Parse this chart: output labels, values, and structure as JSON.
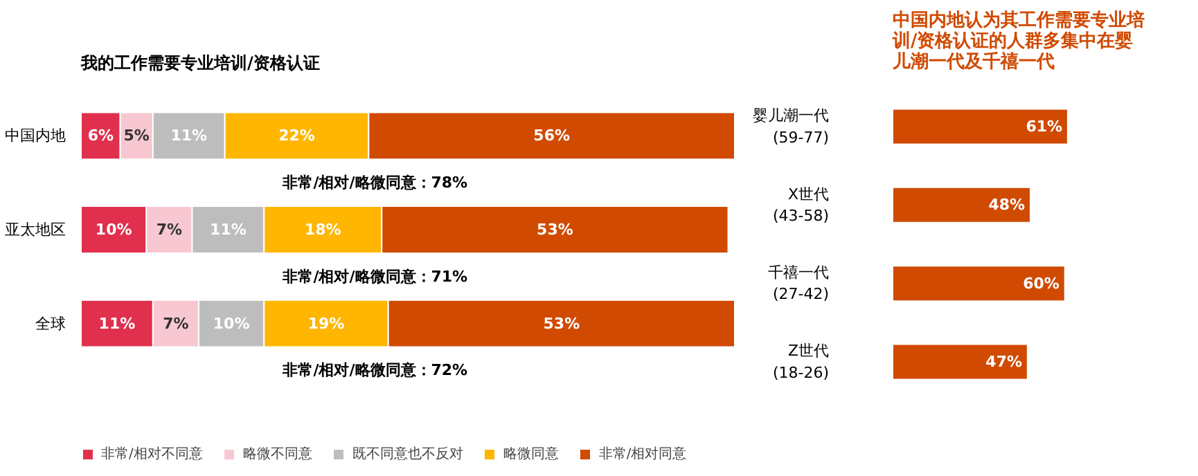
{
  "chart_data": [
    {
      "type": "bar",
      "orientation": "horizontal",
      "stacked": true,
      "title": "我的工作需要专业培训/资格认证",
      "categories": [
        "中国内地",
        "亚太地区",
        "全球"
      ],
      "series": [
        {
          "name": "非常/相对不同意",
          "color": "#e0304e",
          "values": [
            6,
            10,
            11
          ],
          "value_labels": [
            "6%",
            "10%",
            "11%"
          ]
        },
        {
          "name": "略微不同意",
          "color": "#f7c8d2",
          "values": [
            5,
            7,
            7
          ],
          "value_labels": [
            "5%",
            "7%",
            "7%"
          ]
        },
        {
          "name": "既不同意也不反对",
          "color": "#bdbdbd",
          "values": [
            11,
            11,
            10
          ],
          "value_labels": [
            "11%",
            "11%",
            "10%"
          ]
        },
        {
          "name": "略微同意",
          "color": "#ffb600",
          "values": [
            22,
            18,
            19
          ],
          "value_labels": [
            "22%",
            "18%",
            "19%"
          ]
        },
        {
          "name": "非常/相对同意",
          "color": "#d04a02",
          "values": [
            56,
            53,
            53
          ],
          "value_labels": [
            "56%",
            "53%",
            "53%"
          ]
        }
      ],
      "legend": "bottom",
      "annotations": [
        "非常/相对/略微同意：78%",
        "非常/相对/略微同意：71%",
        "非常/相对/略微同意：72%"
      ]
    },
    {
      "type": "bar",
      "orientation": "horizontal",
      "title": "中国内地认为其工作需要专业培训/资格认证的人群多集中在婴儿潮一代及千禧一代",
      "categories": [
        "婴儿潮一代\n(59-77)",
        "X世代\n(43-58)",
        "千禧一代\n(27-42)",
        "Z世代\n(18-26)"
      ],
      "series": [
        {
          "color": "#d04a02",
          "values": [
            61,
            48,
            60,
            47
          ],
          "value_labels": [
            "61%",
            "48%",
            "60%",
            "47%"
          ]
        }
      ]
    }
  ]
}
